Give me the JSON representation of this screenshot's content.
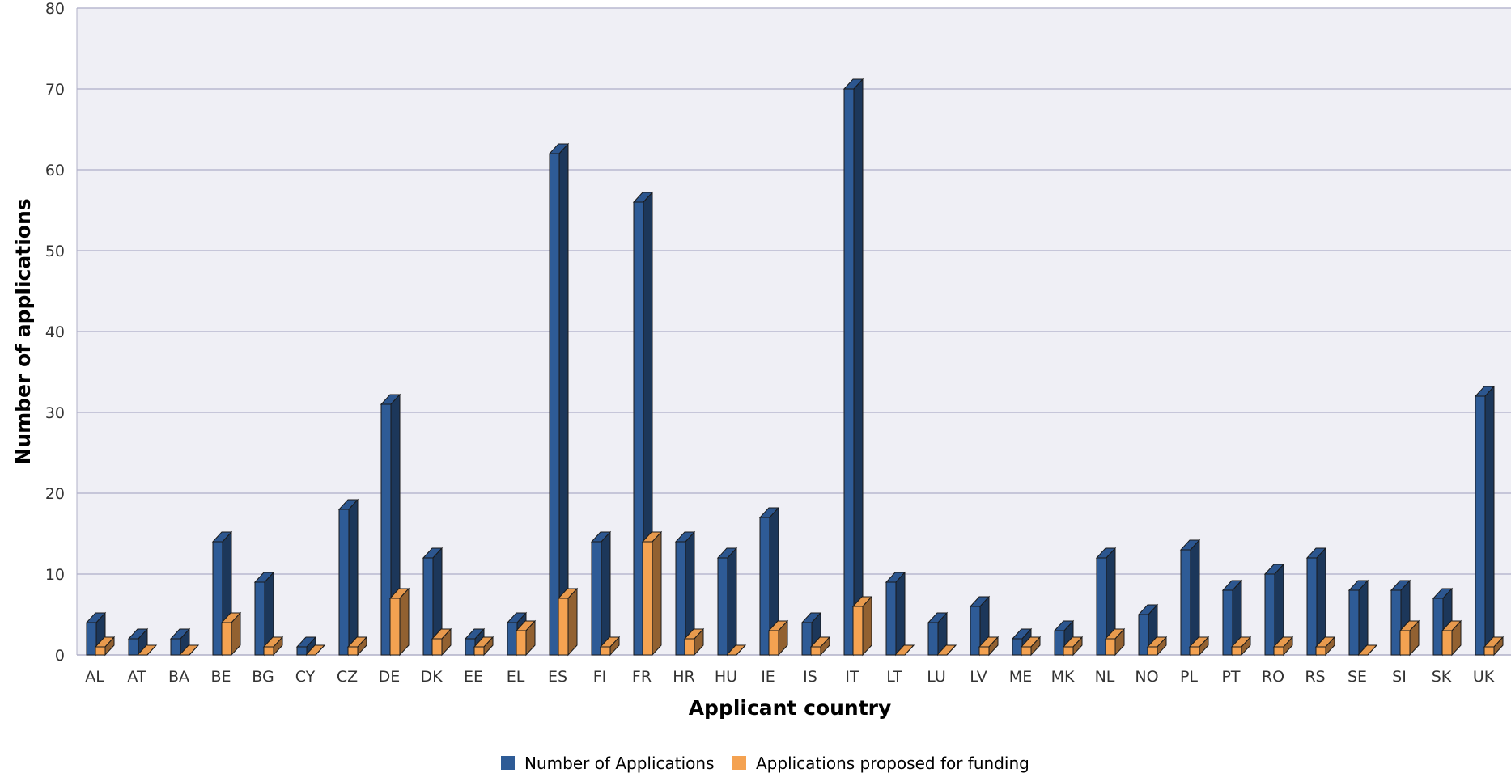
{
  "chart_data": {
    "type": "bar",
    "title": "",
    "xlabel": "Applicant country",
    "ylabel": "Number of applications",
    "ylim": [
      0,
      80
    ],
    "yticks": [
      0,
      10,
      20,
      30,
      40,
      50,
      60,
      70,
      80
    ],
    "grid": true,
    "style": "3d-bars",
    "legend_position": "bottom-center",
    "categories": [
      "AL",
      "AT",
      "BA",
      "BE",
      "BG",
      "CY",
      "CZ",
      "DE",
      "DK",
      "EE",
      "EL",
      "ES",
      "FI",
      "FR",
      "HR",
      "HU",
      "IE",
      "IS",
      "IT",
      "LT",
      "LU",
      "LV",
      "ME",
      "MK",
      "NL",
      "NO",
      "PL",
      "PT",
      "RO",
      "RS",
      "SE",
      "SI",
      "SK",
      "UK"
    ],
    "series": [
      {
        "name": "Number of Applications",
        "color": "#2e5b96",
        "values": [
          4,
          2,
          2,
          14,
          9,
          1,
          18,
          31,
          12,
          2,
          4,
          62,
          14,
          56,
          14,
          12,
          17,
          4,
          70,
          9,
          4,
          6,
          2,
          3,
          12,
          5,
          13,
          8,
          10,
          12,
          8,
          8,
          7,
          32
        ]
      },
      {
        "name": "Applications proposed for funding",
        "color": "#f4a251",
        "values": [
          1,
          0,
          0,
          4,
          1,
          0,
          1,
          7,
          2,
          1,
          3,
          7,
          1,
          14,
          2,
          0,
          3,
          1,
          6,
          0,
          0,
          1,
          1,
          1,
          2,
          1,
          1,
          1,
          1,
          1,
          0,
          3,
          3,
          1
        ]
      }
    ]
  }
}
